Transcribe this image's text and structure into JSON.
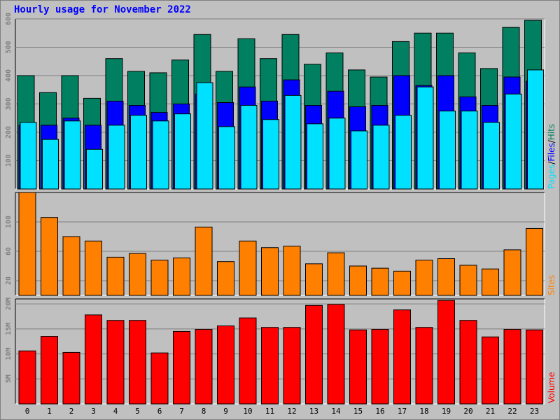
{
  "title": "Hourly usage for November 2022",
  "colors": {
    "hits": "#008060",
    "files": "#0000ff",
    "pages": "#00e0ff",
    "sites": "#ff8000",
    "volume": "#ff0000",
    "title": "#0000ff",
    "grid": "#808080",
    "background": "#c0c0c0"
  },
  "chart_data": [
    {
      "type": "bar",
      "ylim": [
        0,
        600
      ],
      "y_ticks": [
        "100",
        "200",
        "300",
        "400",
        "500",
        "600"
      ],
      "categories": [
        "0",
        "1",
        "2",
        "3",
        "4",
        "5",
        "6",
        "7",
        "8",
        "9",
        "10",
        "11",
        "12",
        "13",
        "14",
        "15",
        "16",
        "17",
        "18",
        "19",
        "20",
        "21",
        "22",
        "23"
      ],
      "side_label": {
        "pages": "Pages",
        "sep1": "/",
        "files": "Files",
        "sep2": "/",
        "hits": "Hits"
      },
      "series": [
        {
          "name": "Hits",
          "values": [
            400,
            340,
            400,
            320,
            460,
            415,
            410,
            455,
            545,
            415,
            530,
            460,
            545,
            440,
            480,
            420,
            395,
            520,
            550,
            550,
            480,
            425,
            570,
            595
          ]
        },
        {
          "name": "Files",
          "values": [
            225,
            225,
            250,
            225,
            310,
            295,
            270,
            300,
            335,
            305,
            360,
            310,
            385,
            295,
            345,
            290,
            295,
            400,
            365,
            400,
            325,
            295,
            395,
            380
          ]
        },
        {
          "name": "Pages",
          "values": [
            235,
            175,
            240,
            140,
            225,
            260,
            240,
            265,
            375,
            220,
            295,
            245,
            330,
            230,
            250,
            205,
            225,
            260,
            360,
            275,
            275,
            235,
            335,
            420
          ]
        }
      ]
    },
    {
      "type": "bar",
      "ylim": [
        0,
        140
      ],
      "y_ticks": [
        "20",
        "60",
        "100"
      ],
      "side_label": "Sites",
      "series": [
        {
          "name": "Sites",
          "values": [
            140,
            106,
            80,
            74,
            52,
            57,
            48,
            51,
            93,
            46,
            74,
            65,
            67,
            43,
            58,
            40,
            37,
            33,
            48,
            50,
            41,
            36,
            62,
            91
          ]
        }
      ]
    },
    {
      "type": "bar",
      "ylim": [
        0,
        21000000
      ],
      "y_ticks": [
        "5M",
        "10M",
        "15M",
        "20M"
      ],
      "side_label": "Volume",
      "series": [
        {
          "name": "Volume",
          "values": [
            10600000,
            13500000,
            10300000,
            17800000,
            16700000,
            16700000,
            10200000,
            14500000,
            14900000,
            15600000,
            17200000,
            15300000,
            15300000,
            19700000,
            19900000,
            14800000,
            14900000,
            18800000,
            15300000,
            20700000,
            16700000,
            13400000,
            14900000,
            14800000
          ]
        }
      ]
    }
  ]
}
